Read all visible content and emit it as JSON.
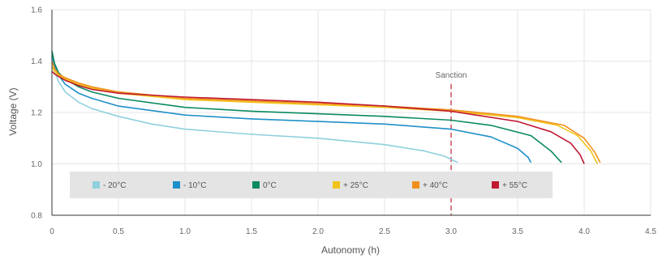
{
  "chart_data": {
    "type": "line",
    "title": "",
    "xlabel": "Autonomy (h)",
    "ylabel": "Voltage (V)",
    "xlim": [
      0,
      4.5
    ],
    "ylim": [
      0.8,
      1.6
    ],
    "x_ticks": [
      0,
      0.5,
      1.0,
      1.5,
      2.0,
      2.5,
      3.0,
      3.5,
      4.0,
      4.5
    ],
    "x_tick_labels": [
      "0",
      "0.5",
      "1.0",
      "1.5",
      "2.0",
      "2.5",
      "3.0",
      "3.5",
      "4.0",
      "4.5"
    ],
    "y_ticks": [
      0.8,
      1.0,
      1.2,
      1.4,
      1.6
    ],
    "y_tick_labels": [
      "0.8",
      "1.0",
      "1.2",
      "1.4",
      "1.6"
    ],
    "grid": true,
    "legend_position": "bottom-left",
    "annotation": {
      "label": "Sanction",
      "x": 3.0,
      "color": "#c0303f"
    },
    "series": [
      {
        "name": "- 20°C",
        "color": "#8fd0dd",
        "x": [
          0,
          0.02,
          0.05,
          0.1,
          0.2,
          0.3,
          0.5,
          0.75,
          1.0,
          1.5,
          2.0,
          2.5,
          2.8,
          2.95,
          3.05
        ],
        "y": [
          1.42,
          1.36,
          1.32,
          1.28,
          1.24,
          1.215,
          1.185,
          1.155,
          1.135,
          1.115,
          1.1,
          1.075,
          1.05,
          1.03,
          1.005
        ]
      },
      {
        "name": "- 10°C",
        "color": "#1e90c8",
        "x": [
          0,
          0.02,
          0.05,
          0.1,
          0.2,
          0.3,
          0.5,
          1.0,
          1.5,
          2.0,
          2.5,
          3.0,
          3.3,
          3.5,
          3.58,
          3.6
        ],
        "y": [
          1.43,
          1.38,
          1.345,
          1.31,
          1.275,
          1.255,
          1.225,
          1.19,
          1.175,
          1.165,
          1.155,
          1.135,
          1.105,
          1.06,
          1.025,
          1.005
        ]
      },
      {
        "name": "0°C",
        "color": "#0a8a60",
        "x": [
          0,
          0.02,
          0.05,
          0.1,
          0.2,
          0.3,
          0.5,
          1.0,
          1.5,
          2.0,
          2.5,
          3.0,
          3.3,
          3.6,
          3.75,
          3.83
        ],
        "y": [
          1.44,
          1.39,
          1.355,
          1.33,
          1.3,
          1.28,
          1.255,
          1.22,
          1.205,
          1.195,
          1.185,
          1.17,
          1.15,
          1.11,
          1.05,
          1.005
        ]
      },
      {
        "name": "+ 25°C",
        "color": "#f2c31a",
        "x": [
          0,
          0.02,
          0.05,
          0.1,
          0.2,
          0.3,
          0.5,
          1.0,
          1.5,
          2.0,
          2.5,
          3.0,
          3.5,
          3.8,
          3.95,
          4.05,
          4.1
        ],
        "y": [
          1.38,
          1.36,
          1.345,
          1.33,
          1.31,
          1.295,
          1.275,
          1.25,
          1.24,
          1.23,
          1.22,
          1.205,
          1.18,
          1.15,
          1.11,
          1.05,
          1.0
        ]
      },
      {
        "name": "+ 40°C",
        "color": "#f0901c",
        "x": [
          0,
          0.02,
          0.05,
          0.1,
          0.2,
          0.3,
          0.5,
          1.0,
          1.5,
          2.0,
          2.5,
          3.0,
          3.5,
          3.85,
          4.0,
          4.08,
          4.12
        ],
        "y": [
          1.4,
          1.37,
          1.35,
          1.335,
          1.315,
          1.3,
          1.28,
          1.255,
          1.245,
          1.235,
          1.225,
          1.21,
          1.185,
          1.15,
          1.1,
          1.045,
          1.005
        ]
      },
      {
        "name": "+ 55°C",
        "color": "#c01a33",
        "x": [
          0,
          0.02,
          0.05,
          0.1,
          0.2,
          0.3,
          0.5,
          1.0,
          1.5,
          2.0,
          2.5,
          3.0,
          3.5,
          3.75,
          3.9,
          3.97,
          4.0
        ],
        "y": [
          1.36,
          1.35,
          1.34,
          1.325,
          1.305,
          1.29,
          1.275,
          1.26,
          1.25,
          1.24,
          1.225,
          1.205,
          1.165,
          1.125,
          1.08,
          1.035,
          1.0
        ]
      }
    ]
  }
}
